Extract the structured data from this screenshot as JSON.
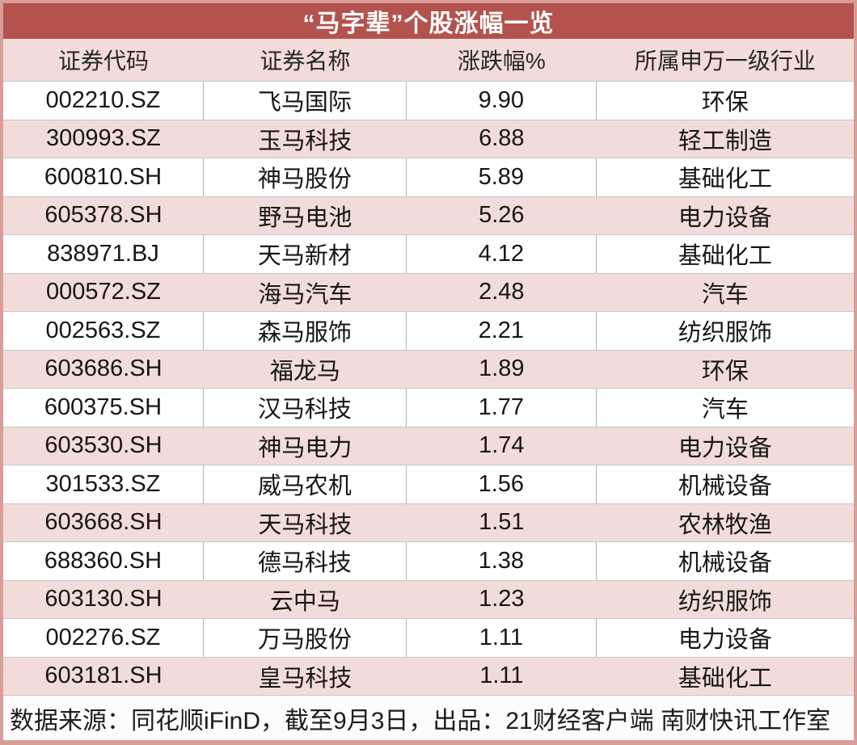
{
  "chart_data": {
    "type": "table",
    "title": "“马字辈”个股涨幅一览",
    "columns": [
      "证券代码",
      "证券名称",
      "涨跌幅%",
      "所属申万一级行业"
    ],
    "column_keys": [
      "code",
      "name",
      "change_pct",
      "industry"
    ],
    "rows": [
      [
        "002210.SZ",
        "飞马国际",
        "9.90",
        "环保"
      ],
      [
        "300993.SZ",
        "玉马科技",
        "6.88",
        "轻工制造"
      ],
      [
        "600810.SH",
        "神马股份",
        "5.89",
        "基础化工"
      ],
      [
        "605378.SH",
        "野马电池",
        "5.26",
        "电力设备"
      ],
      [
        "838971.BJ",
        "天马新材",
        "4.12",
        "基础化工"
      ],
      [
        "000572.SZ",
        "海马汽车",
        "2.48",
        "汽车"
      ],
      [
        "002563.SZ",
        "森马服饰",
        "2.21",
        "纺织服饰"
      ],
      [
        "603686.SH",
        "福龙马",
        "1.89",
        "环保"
      ],
      [
        "600375.SH",
        "汉马科技",
        "1.77",
        "汽车"
      ],
      [
        "603530.SH",
        "神马电力",
        "1.74",
        "电力设备"
      ],
      [
        "301533.SZ",
        "威马农机",
        "1.56",
        "机械设备"
      ],
      [
        "603668.SH",
        "天马科技",
        "1.51",
        "农林牧渔"
      ],
      [
        "688360.SH",
        "德马科技",
        "1.38",
        "机械设备"
      ],
      [
        "603130.SH",
        "云中马",
        "1.23",
        "纺织服饰"
      ],
      [
        "002276.SZ",
        "万马股份",
        "1.11",
        "电力设备"
      ],
      [
        "603181.SH",
        "皇马科技",
        "1.11",
        "基础化工"
      ]
    ],
    "change_values": [
      9.9,
      6.88,
      5.89,
      5.26,
      4.12,
      2.48,
      2.21,
      1.89,
      1.77,
      1.74,
      1.56,
      1.51,
      1.38,
      1.23,
      1.11,
      1.11
    ],
    "footnote": "数据来源：同花顺iFinD，截至9月3日，出品：21财经客户端 南财快讯工作室",
    "layout": {
      "banding": "alternating white and pink rows, first data row white",
      "alignment": "all cells centered, footnote left-aligned"
    }
  },
  "colors": {
    "title_bg": "#b4524e",
    "title_text": "#ffffff",
    "band_pink": "#f2dcd9",
    "border_pink": "#d99d98",
    "divider_gray": "#b3b3b3"
  }
}
